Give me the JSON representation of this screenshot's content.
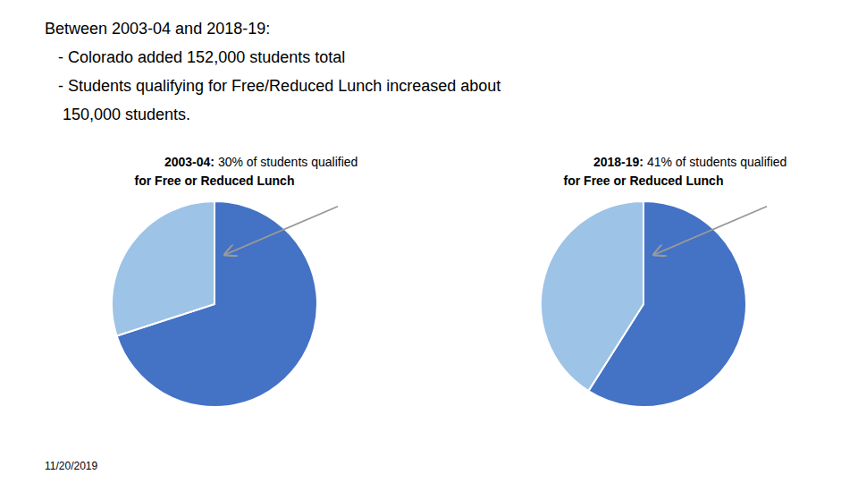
{
  "title": [
    "Between 2003-04 and 2018-19:",
    "   - Colorado added 152,000 students total",
    "   - Students qualifying for Free/Reduced Lunch increased about",
    "    150,000 students."
  ],
  "annotations": [
    "11/20/2019"
  ],
  "chart_data": [
    {
      "type": "pie",
      "title": [
        "2003-04:",
        " 30% of students qualified"
      ],
      "subtitle": "for Free or Reduced Lunch",
      "values": [
        70,
        30
      ],
      "colors": [
        "#4472C4",
        "#9DC3E6"
      ]
    },
    {
      "type": "pie",
      "title": [
        "2018-19:",
        " 41% of students qualified"
      ],
      "subtitle": "for Free or Reduced Lunch",
      "values": [
        59,
        41
      ],
      "colors": [
        "#4472C4",
        "#9DC3E6"
      ]
    }
  ]
}
